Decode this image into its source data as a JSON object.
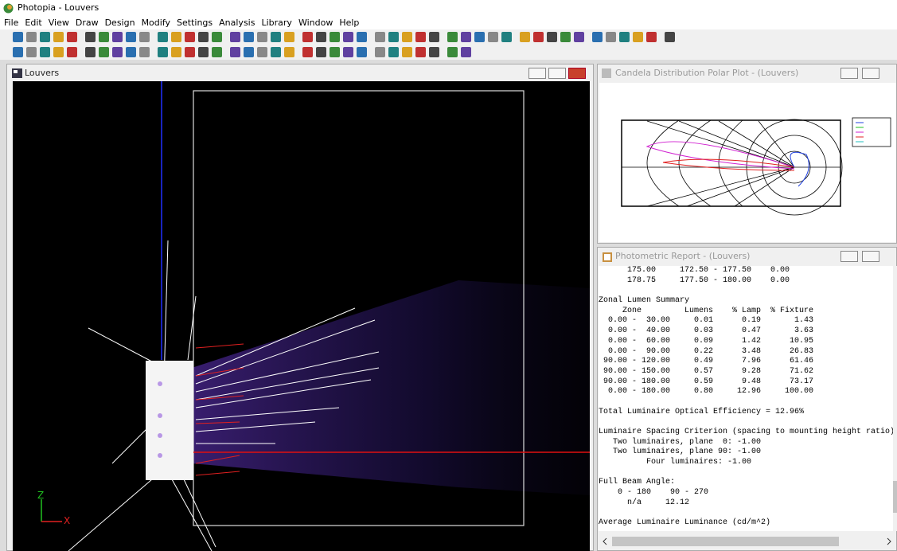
{
  "app": {
    "title": "Photopia - Louvers",
    "menu": [
      "File",
      "Edit",
      "View",
      "Draw",
      "Design",
      "Modify",
      "Settings",
      "Analysis",
      "Library",
      "Window",
      "Help"
    ]
  },
  "viewport": {
    "title": "Louvers",
    "axes": {
      "z": "Z",
      "x": "X"
    }
  },
  "polar_plot": {
    "title": "Candela Distribution Polar Plot - (Louvers)"
  },
  "report": {
    "title": "Photometric Report - (Louvers)",
    "blocks": [
      [
        "      175.00     172.50 - 177.50    0.00",
        "      178.75     177.50 - 180.00    0.00"
      ],
      [
        "Zonal Lumen Summary",
        "     Zone         Lumens    % Lamp  % Fixture",
        "  0.00 -  30.00     0.01      0.19       1.43",
        "  0.00 -  40.00     0.03      0.47       3.63",
        "  0.00 -  60.00     0.09      1.42      10.95",
        "  0.00 -  90.00     0.22      3.48      26.83",
        " 90.00 - 120.00     0.49      7.96      61.46",
        " 90.00 - 150.00     0.57      9.28      71.62",
        " 90.00 - 180.00     0.59      9.48      73.17",
        "  0.00 - 180.00     0.80     12.96     100.00"
      ],
      [
        "Total Luminaire Optical Efficiency = 12.96%"
      ],
      [
        "Luminaire Spacing Criterion (spacing to mounting height ratio)",
        "   Two luminaires, plane  0: -1.00",
        "   Two luminaires, plane 90: -1.00",
        "          Four luminaires: -1.00"
      ],
      [
        "Full Beam Angle:",
        "    0 - 180    90 - 270",
        "      n/a     12.12"
      ],
      [
        "Average Luminaire Luminance (cd/m^2)"
      ]
    ]
  }
}
